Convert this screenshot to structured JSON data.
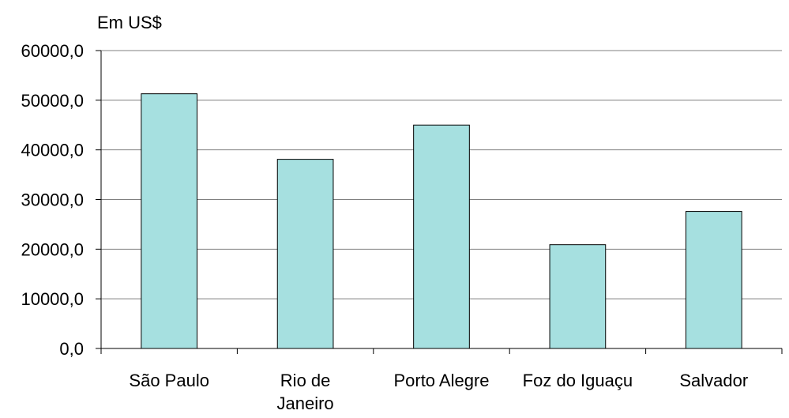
{
  "chart_data": {
    "type": "bar",
    "title": "",
    "unit_label": "Em US$",
    "xlabel": "",
    "ylabel": "",
    "categories": [
      [
        "São Paulo"
      ],
      [
        "Rio de",
        "Janeiro"
      ],
      [
        "Porto Alegre"
      ],
      [
        "Foz do Iguaçu"
      ],
      [
        "Salvador"
      ]
    ],
    "values": [
      51300,
      38100,
      45000,
      20900,
      27600
    ],
    "ylim": [
      0,
      60000
    ],
    "yticks": [
      0,
      10000,
      20000,
      30000,
      40000,
      50000,
      60000
    ],
    "ytick_labels": [
      "0,0",
      "10000,0",
      "20000,0",
      "30000,0",
      "40000,0",
      "50000,0",
      "60000,0"
    ],
    "grid": true,
    "legend": "none",
    "colors": {
      "bar_fill": "#a6e0e0",
      "bar_stroke": "#000000",
      "grid": "#808080",
      "axis": "#000000"
    }
  }
}
